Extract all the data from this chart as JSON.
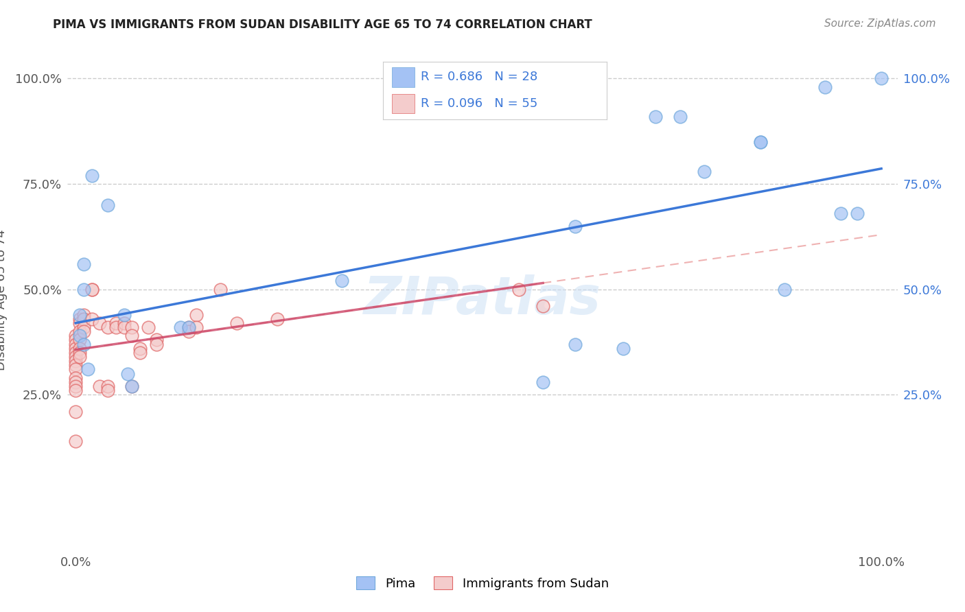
{
  "title": "PIMA VS IMMIGRANTS FROM SUDAN DISABILITY AGE 65 TO 74 CORRELATION CHART",
  "source": "Source: ZipAtlas.com",
  "ylabel": "Disability Age 65 to 74",
  "watermark": "ZIPatlas",
  "blue_color": "#a4c2f4",
  "pink_color": "#f4cccc",
  "blue_scatter_edge": "#6fa8dc",
  "pink_scatter_edge": "#e06666",
  "blue_line_color": "#3c78d8",
  "pink_line_color": "#cc4466",
  "pink_dash_color": "#e06666",
  "figsize": [
    14.06,
    8.92
  ],
  "dpi": 100,
  "pima_x": [
    0.02,
    0.04,
    0.01,
    0.01,
    0.005,
    0.005,
    0.01,
    0.015,
    0.06,
    0.065,
    0.07,
    0.13,
    0.14,
    0.33,
    0.58,
    0.62,
    0.62,
    0.68,
    0.72,
    0.75,
    0.78,
    0.85,
    0.85,
    0.88,
    0.93,
    0.95,
    0.97,
    1.0
  ],
  "pima_y": [
    0.77,
    0.7,
    0.56,
    0.5,
    0.44,
    0.39,
    0.37,
    0.31,
    0.44,
    0.3,
    0.27,
    0.41,
    0.41,
    0.52,
    0.28,
    0.37,
    0.65,
    0.36,
    0.91,
    0.91,
    0.78,
    0.85,
    0.85,
    0.5,
    0.98,
    0.68,
    0.68,
    1.0
  ],
  "sudan_x": [
    0.0,
    0.0,
    0.0,
    0.0,
    0.0,
    0.0,
    0.0,
    0.0,
    0.0,
    0.0,
    0.0,
    0.0,
    0.0,
    0.0,
    0.0,
    0.005,
    0.005,
    0.005,
    0.005,
    0.005,
    0.005,
    0.005,
    0.01,
    0.01,
    0.01,
    0.01,
    0.02,
    0.02,
    0.02,
    0.03,
    0.03,
    0.04,
    0.04,
    0.04,
    0.05,
    0.05,
    0.06,
    0.06,
    0.07,
    0.07,
    0.07,
    0.08,
    0.08,
    0.09,
    0.1,
    0.1,
    0.14,
    0.14,
    0.15,
    0.15,
    0.18,
    0.2,
    0.25,
    0.55,
    0.58
  ],
  "sudan_y": [
    0.39,
    0.38,
    0.37,
    0.36,
    0.35,
    0.34,
    0.33,
    0.32,
    0.31,
    0.29,
    0.28,
    0.27,
    0.26,
    0.21,
    0.14,
    0.43,
    0.42,
    0.4,
    0.38,
    0.36,
    0.35,
    0.34,
    0.44,
    0.43,
    0.41,
    0.4,
    0.5,
    0.5,
    0.43,
    0.42,
    0.27,
    0.41,
    0.27,
    0.26,
    0.42,
    0.41,
    0.42,
    0.41,
    0.41,
    0.39,
    0.27,
    0.36,
    0.35,
    0.41,
    0.38,
    0.37,
    0.41,
    0.4,
    0.44,
    0.41,
    0.5,
    0.42,
    0.43,
    0.5,
    0.46
  ],
  "xlim": [
    -0.01,
    1.02
  ],
  "ylim": [
    -0.12,
    1.07
  ]
}
